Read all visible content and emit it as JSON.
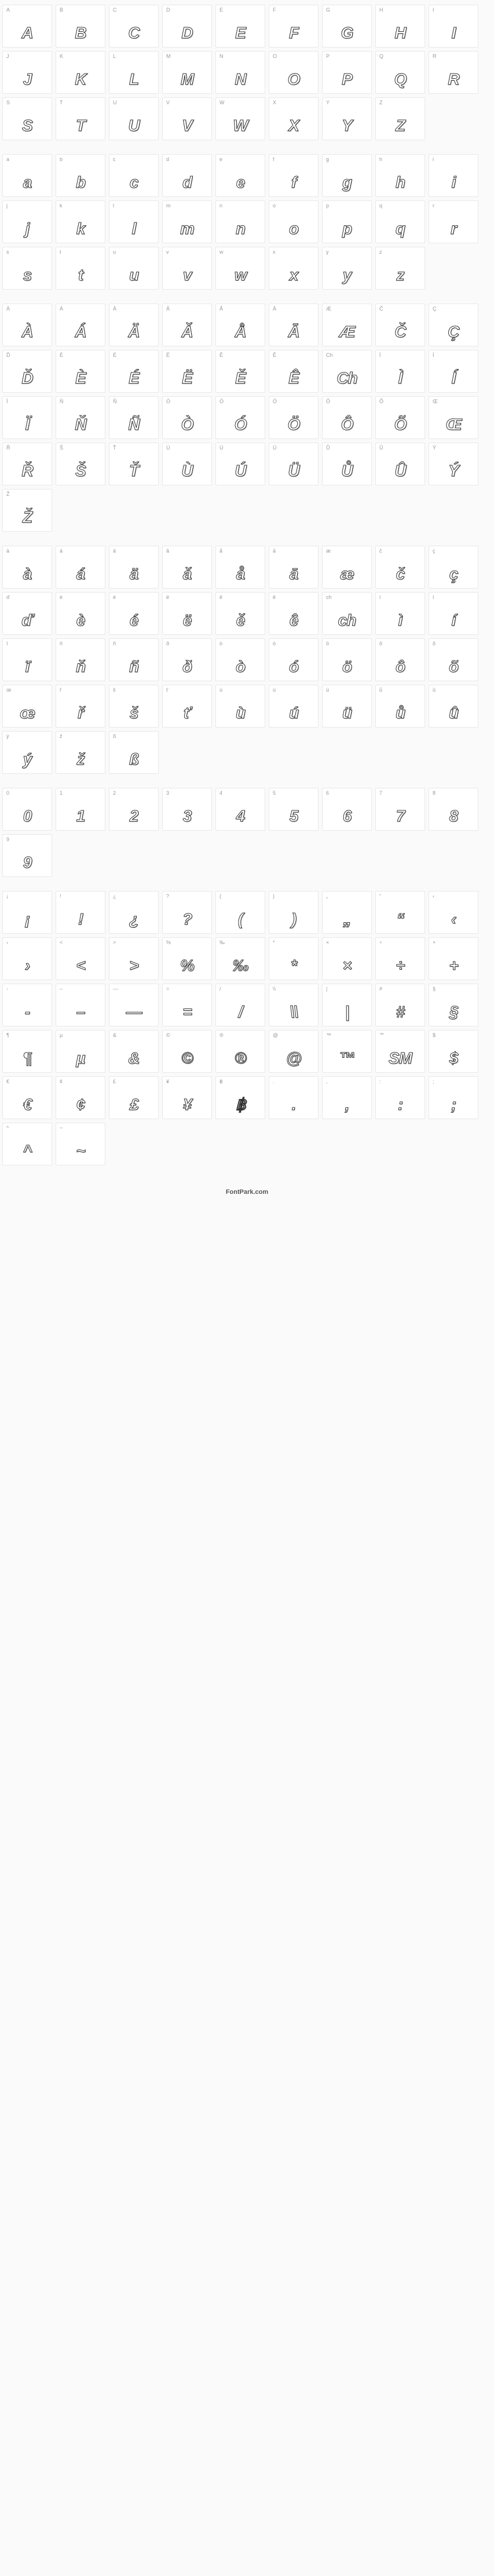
{
  "footer": "FontPark.com",
  "cell_bg": "#ffffff",
  "cell_border": "#e8e8e8",
  "label_color": "#999999",
  "glyph_color": "#333333",
  "glyph_shadow": "#aaaaaa",
  "font_style": {
    "italic": true,
    "weight": "700",
    "outline": true,
    "shadow_offset": "1px 1px"
  },
  "sections": [
    {
      "name": "uppercase",
      "cells": [
        {
          "l": "A",
          "g": "A"
        },
        {
          "l": "B",
          "g": "B"
        },
        {
          "l": "C",
          "g": "C"
        },
        {
          "l": "D",
          "g": "D"
        },
        {
          "l": "E",
          "g": "E"
        },
        {
          "l": "F",
          "g": "F"
        },
        {
          "l": "G",
          "g": "G"
        },
        {
          "l": "H",
          "g": "H"
        },
        {
          "l": "I",
          "g": "I"
        },
        {
          "l": "J",
          "g": "J"
        },
        {
          "l": "K",
          "g": "K"
        },
        {
          "l": "L",
          "g": "L"
        },
        {
          "l": "M",
          "g": "M"
        },
        {
          "l": "N",
          "g": "N"
        },
        {
          "l": "O",
          "g": "O"
        },
        {
          "l": "P",
          "g": "P"
        },
        {
          "l": "Q",
          "g": "Q"
        },
        {
          "l": "R",
          "g": "R"
        },
        {
          "l": "S",
          "g": "S"
        },
        {
          "l": "T",
          "g": "T"
        },
        {
          "l": "U",
          "g": "U"
        },
        {
          "l": "V",
          "g": "V"
        },
        {
          "l": "W",
          "g": "W"
        },
        {
          "l": "X",
          "g": "X"
        },
        {
          "l": "Y",
          "g": "Y"
        },
        {
          "l": "Z",
          "g": "Z"
        }
      ]
    },
    {
      "name": "lowercase",
      "cells": [
        {
          "l": "a",
          "g": "a"
        },
        {
          "l": "b",
          "g": "b"
        },
        {
          "l": "c",
          "g": "c"
        },
        {
          "l": "d",
          "g": "d"
        },
        {
          "l": "e",
          "g": "e"
        },
        {
          "l": "f",
          "g": "f"
        },
        {
          "l": "g",
          "g": "g"
        },
        {
          "l": "h",
          "g": "h"
        },
        {
          "l": "i",
          "g": "i"
        },
        {
          "l": "j",
          "g": "j"
        },
        {
          "l": "k",
          "g": "k"
        },
        {
          "l": "l",
          "g": "l"
        },
        {
          "l": "m",
          "g": "m"
        },
        {
          "l": "n",
          "g": "n"
        },
        {
          "l": "o",
          "g": "o"
        },
        {
          "l": "p",
          "g": "p"
        },
        {
          "l": "q",
          "g": "q"
        },
        {
          "l": "r",
          "g": "r"
        },
        {
          "l": "s",
          "g": "s"
        },
        {
          "l": "t",
          "g": "t"
        },
        {
          "l": "u",
          "g": "u"
        },
        {
          "l": "v",
          "g": "v"
        },
        {
          "l": "w",
          "g": "w"
        },
        {
          "l": "x",
          "g": "x"
        },
        {
          "l": "y",
          "g": "y"
        },
        {
          "l": "z",
          "g": "z"
        }
      ]
    },
    {
      "name": "accented-upper",
      "cells": [
        {
          "l": "À",
          "g": "À"
        },
        {
          "l": "Á",
          "g": "Á"
        },
        {
          "l": "Ä",
          "g": "Ä"
        },
        {
          "l": "Ǎ",
          "g": "Ǎ"
        },
        {
          "l": "Å",
          "g": "Å"
        },
        {
          "l": "Ā",
          "g": "Ā"
        },
        {
          "l": "Æ",
          "g": "Æ"
        },
        {
          "l": "Č",
          "g": "Č"
        },
        {
          "l": "Ç",
          "g": "Ç"
        },
        {
          "l": "Ď",
          "g": "Ď"
        },
        {
          "l": "È",
          "g": "È"
        },
        {
          "l": "É",
          "g": "É"
        },
        {
          "l": "Ë",
          "g": "Ë"
        },
        {
          "l": "Ě",
          "g": "Ě"
        },
        {
          "l": "Ê",
          "g": "Ê"
        },
        {
          "l": "Ch",
          "g": "Ch"
        },
        {
          "l": "Ì",
          "g": "Ì"
        },
        {
          "l": "Í",
          "g": "Í"
        },
        {
          "l": "Ï",
          "g": "Ï"
        },
        {
          "l": "Ň",
          "g": "Ň"
        },
        {
          "l": "Ñ",
          "g": "Ñ"
        },
        {
          "l": "Ò",
          "g": "Ò"
        },
        {
          "l": "Ó",
          "g": "Ó"
        },
        {
          "l": "Ö",
          "g": "Ö"
        },
        {
          "l": "Ô",
          "g": "Ô"
        },
        {
          "l": "Õ",
          "g": "Õ"
        },
        {
          "l": "Œ",
          "g": "Œ"
        },
        {
          "l": "Ř",
          "g": "Ř"
        },
        {
          "l": "Š",
          "g": "Š"
        },
        {
          "l": "Ť",
          "g": "Ť"
        },
        {
          "l": "Ù",
          "g": "Ù"
        },
        {
          "l": "Ú",
          "g": "Ú"
        },
        {
          "l": "Ü",
          "g": "Ü"
        },
        {
          "l": "Ů",
          "g": "Ů"
        },
        {
          "l": "Û",
          "g": "Û"
        },
        {
          "l": "Ý",
          "g": "Ý"
        },
        {
          "l": "Ž",
          "g": "Ž"
        }
      ]
    },
    {
      "name": "accented-lower",
      "cells": [
        {
          "l": "à",
          "g": "à"
        },
        {
          "l": "á",
          "g": "á"
        },
        {
          "l": "ä",
          "g": "ä"
        },
        {
          "l": "ǎ",
          "g": "ǎ"
        },
        {
          "l": "å",
          "g": "å"
        },
        {
          "l": "ā",
          "g": "ā"
        },
        {
          "l": "æ",
          "g": "æ"
        },
        {
          "l": "č",
          "g": "č"
        },
        {
          "l": "ç",
          "g": "ç"
        },
        {
          "l": "ď",
          "g": "ď"
        },
        {
          "l": "è",
          "g": "è"
        },
        {
          "l": "é",
          "g": "é"
        },
        {
          "l": "ë",
          "g": "ë"
        },
        {
          "l": "ě",
          "g": "ě"
        },
        {
          "l": "ê",
          "g": "ê"
        },
        {
          "l": "ch",
          "g": "ch"
        },
        {
          "l": "ì",
          "g": "ì"
        },
        {
          "l": "í",
          "g": "í"
        },
        {
          "l": "ï",
          "g": "ï"
        },
        {
          "l": "ň",
          "g": "ň"
        },
        {
          "l": "ñ",
          "g": "ñ"
        },
        {
          "l": "ð",
          "g": "ð"
        },
        {
          "l": "ò",
          "g": "ò"
        },
        {
          "l": "ó",
          "g": "ó"
        },
        {
          "l": "ö",
          "g": "ö"
        },
        {
          "l": "ô",
          "g": "ô"
        },
        {
          "l": "õ",
          "g": "õ"
        },
        {
          "l": "œ",
          "g": "œ"
        },
        {
          "l": "ř",
          "g": "ř"
        },
        {
          "l": "š",
          "g": "š"
        },
        {
          "l": "ť",
          "g": "ť"
        },
        {
          "l": "ù",
          "g": "ù"
        },
        {
          "l": "ú",
          "g": "ú"
        },
        {
          "l": "ü",
          "g": "ü"
        },
        {
          "l": "ů",
          "g": "ů"
        },
        {
          "l": "û",
          "g": "û"
        },
        {
          "l": "ý",
          "g": "ý"
        },
        {
          "l": "ž",
          "g": "ž"
        },
        {
          "l": "ß",
          "g": "ß"
        }
      ]
    },
    {
      "name": "digits",
      "cells": [
        {
          "l": "0",
          "g": "0"
        },
        {
          "l": "1",
          "g": "1"
        },
        {
          "l": "2",
          "g": "2"
        },
        {
          "l": "3",
          "g": "3"
        },
        {
          "l": "4",
          "g": "4"
        },
        {
          "l": "5",
          "g": "5"
        },
        {
          "l": "6",
          "g": "6"
        },
        {
          "l": "7",
          "g": "7"
        },
        {
          "l": "8",
          "g": "8"
        },
        {
          "l": "9",
          "g": "9"
        }
      ]
    },
    {
      "name": "symbols",
      "cells": [
        {
          "l": "¡",
          "g": "¡"
        },
        {
          "l": "!",
          "g": "!"
        },
        {
          "l": "¿",
          "g": "¿"
        },
        {
          "l": "?",
          "g": "?"
        },
        {
          "l": "(",
          "g": "("
        },
        {
          "l": ")",
          "g": ")"
        },
        {
          "l": "„",
          "g": "„"
        },
        {
          "l": "“",
          "g": "“"
        },
        {
          "l": "‹",
          "g": "‹"
        },
        {
          "l": "›",
          "g": "›"
        },
        {
          "l": "<",
          "g": "<"
        },
        {
          "l": ">",
          "g": ">"
        },
        {
          "l": "%",
          "g": "%"
        },
        {
          "l": "‰",
          "g": "‰"
        },
        {
          "l": "*",
          "g": "*"
        },
        {
          "l": "×",
          "g": "×"
        },
        {
          "l": "÷",
          "g": "÷"
        },
        {
          "l": "+",
          "g": "+"
        },
        {
          "l": "-",
          "g": "-"
        },
        {
          "l": "–",
          "g": "–"
        },
        {
          "l": "—",
          "g": "—"
        },
        {
          "l": "=",
          "g": "="
        },
        {
          "l": "/",
          "g": "/"
        },
        {
          "l": "\\\\",
          "g": "\\\\"
        },
        {
          "l": "|",
          "g": "|"
        },
        {
          "l": "#",
          "g": "#"
        },
        {
          "l": "§",
          "g": "§"
        },
        {
          "l": "¶",
          "g": "¶"
        },
        {
          "l": "µ",
          "g": "µ"
        },
        {
          "l": "&",
          "g": "&"
        },
        {
          "l": "©",
          "g": "©"
        },
        {
          "l": "®",
          "g": "®"
        },
        {
          "l": "@",
          "g": "@"
        },
        {
          "l": "™",
          "g": "™"
        },
        {
          "l": "℠",
          "g": "SM"
        },
        {
          "l": "$",
          "g": "$"
        },
        {
          "l": "€",
          "g": "€"
        },
        {
          "l": "¢",
          "g": "¢"
        },
        {
          "l": "£",
          "g": "£"
        },
        {
          "l": "¥",
          "g": "¥"
        },
        {
          "l": "฿",
          "g": "฿"
        },
        {
          "l": ".",
          "g": "."
        },
        {
          "l": ",",
          "g": ","
        },
        {
          "l": ":",
          "g": ":"
        },
        {
          "l": ";",
          "g": ";"
        },
        {
          "l": "^",
          "g": "^"
        },
        {
          "l": "~",
          "g": "~"
        }
      ]
    }
  ]
}
